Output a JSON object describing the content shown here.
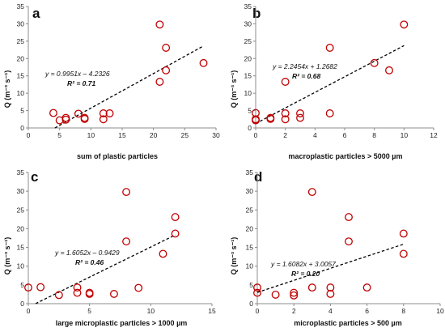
{
  "figure": {
    "background": "#ffffff",
    "marker_color": "#c00000",
    "trend_color": "#000000",
    "axis_color": "#8c8c8c"
  },
  "chart_data": [
    {
      "type": "scatter",
      "panel": "a",
      "xlabel": "sum of plastic particles",
      "ylabel": "Q (m⁻³ s⁻¹)",
      "xlim": [
        0,
        30
      ],
      "ylim": [
        0,
        35
      ],
      "xticks": [
        0,
        5,
        10,
        15,
        20,
        25,
        30
      ],
      "yticks": [
        0,
        5,
        10,
        15,
        20,
        25,
        30,
        35
      ],
      "grid": false,
      "points": [
        [
          4,
          4.3
        ],
        [
          5,
          2.2
        ],
        [
          6,
          2.9
        ],
        [
          6,
          2.4
        ],
        [
          8,
          4.1
        ],
        [
          9,
          2.9
        ],
        [
          9,
          2.6
        ],
        [
          12,
          4.2
        ],
        [
          12,
          2.5
        ],
        [
          13,
          4.2
        ],
        [
          21,
          29.8
        ],
        [
          21,
          13.3
        ],
        [
          22,
          23.1
        ],
        [
          22,
          16.6
        ],
        [
          28,
          18.7
        ]
      ],
      "trendline": {
        "slope": 0.9951,
        "intercept": -4.2326,
        "x_range": [
          4.25,
          28
        ]
      },
      "equation": "y = 0.9951x – 4.2326",
      "r2": "R² = 0.71"
    },
    {
      "type": "scatter",
      "panel": "b",
      "xlabel": "macroplastic particles > 5000 µm",
      "ylabel": "Q (m⁻³ s⁻¹)",
      "xlim": [
        0,
        12
      ],
      "ylim": [
        0,
        35
      ],
      "xticks": [
        0,
        2,
        4,
        6,
        8,
        10,
        12
      ],
      "yticks": [
        0,
        5,
        10,
        15,
        20,
        25,
        30,
        35
      ],
      "grid": false,
      "points": [
        [
          0,
          4.3
        ],
        [
          0,
          2.5
        ],
        [
          0,
          2.2
        ],
        [
          1,
          2.9
        ],
        [
          1,
          2.6
        ],
        [
          2,
          13.3
        ],
        [
          2,
          4.2
        ],
        [
          2,
          2.5
        ],
        [
          3,
          4.2
        ],
        [
          3,
          2.9
        ],
        [
          5,
          23.1
        ],
        [
          5,
          4.2
        ],
        [
          8,
          18.7
        ],
        [
          9,
          16.6
        ],
        [
          10,
          29.8
        ]
      ],
      "trendline": {
        "slope": 2.2454,
        "intercept": 1.2682,
        "x_range": [
          0,
          10
        ]
      },
      "equation": "y = 2.2454x + 1.2682",
      "r2": "R² = 0.68"
    },
    {
      "type": "scatter",
      "panel": "c",
      "xlabel": "large microplastic particles > 1000 µm",
      "ylabel": "Q (m⁻³ s⁻¹)",
      "xlim": [
        0,
        15
      ],
      "ylim": [
        0,
        35
      ],
      "xticks": [
        0,
        5,
        10,
        15
      ],
      "yticks": [
        0,
        5,
        10,
        15,
        20,
        25,
        30,
        35
      ],
      "grid": false,
      "points": [
        [
          0,
          4.3
        ],
        [
          1,
          4.4
        ],
        [
          2.5,
          2.3
        ],
        [
          4,
          4.3
        ],
        [
          4,
          2.9
        ],
        [
          5,
          2.9
        ],
        [
          5,
          2.6
        ],
        [
          7,
          2.6
        ],
        [
          8,
          29.8
        ],
        [
          8,
          16.6
        ],
        [
          9,
          4.2
        ],
        [
          11,
          13.3
        ],
        [
          12,
          23.1
        ],
        [
          12,
          18.7
        ]
      ],
      "trendline": {
        "slope": 1.6052,
        "intercept": -0.9429,
        "x_range": [
          0.6,
          12
        ]
      },
      "equation": "y = 1.6052x – 0.9429",
      "r2": "R² = 0.46"
    },
    {
      "type": "scatter",
      "panel": "d",
      "xlabel": "microplastic particles > 500 µm",
      "ylabel": "Q (m⁻³ s⁻¹)",
      "xlim": [
        0,
        10
      ],
      "ylim": [
        0,
        35
      ],
      "xticks": [
        0,
        2,
        4,
        6,
        8,
        10
      ],
      "yticks": [
        0,
        5,
        10,
        15,
        20,
        25,
        30,
        35
      ],
      "grid": false,
      "points": [
        [
          0,
          4.3
        ],
        [
          0,
          2.9
        ],
        [
          1,
          2.4
        ],
        [
          2,
          2.9
        ],
        [
          2,
          2.2
        ],
        [
          3,
          29.8
        ],
        [
          3,
          4.3
        ],
        [
          4,
          4.3
        ],
        [
          4,
          2.6
        ],
        [
          5,
          23.1
        ],
        [
          5,
          16.6
        ],
        [
          6,
          4.3
        ],
        [
          8,
          18.7
        ],
        [
          8,
          13.3
        ]
      ],
      "trendline": {
        "slope": 1.6082,
        "intercept": 3.0057,
        "x_range": [
          0,
          8
        ]
      },
      "equation": "y = 1.6082x + 3.0057",
      "r2": "R² = 0.20"
    }
  ]
}
